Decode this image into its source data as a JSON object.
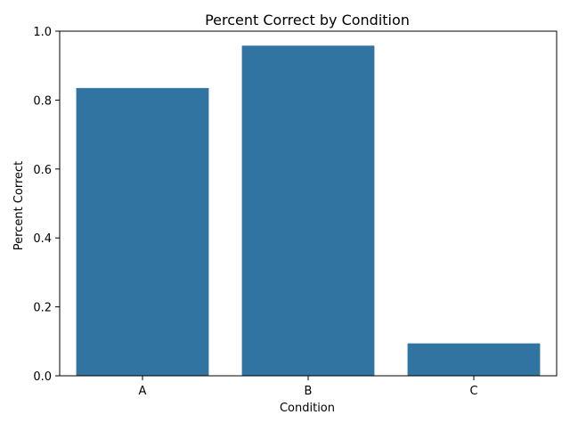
{
  "chart_data": {
    "type": "bar",
    "title": "Percent Correct by Condition",
    "xlabel": "Condition",
    "ylabel": "Percent Correct",
    "categories": [
      "A",
      "B",
      "C"
    ],
    "values": [
      0.835,
      0.958,
      0.094
    ],
    "ylim": [
      0,
      1.0
    ],
    "yticks": [
      "0.0",
      "0.2",
      "0.4",
      "0.6",
      "0.8",
      "1.0"
    ],
    "grid": false,
    "bar_color": "#3274a1"
  }
}
